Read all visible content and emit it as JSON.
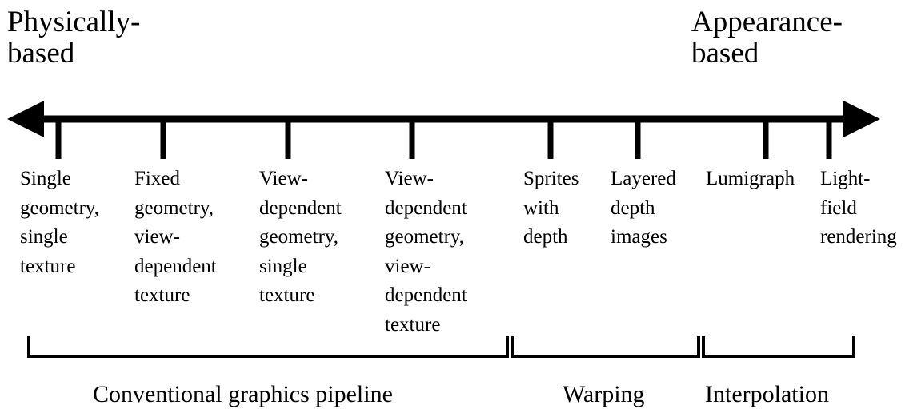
{
  "axis": {
    "left_label": [
      "Physically-",
      "based"
    ],
    "right_label": [
      "Appearance-",
      "based"
    ]
  },
  "categories": [
    {
      "id": "single-geometry-single-texture",
      "lines": [
        "Single",
        "geometry,",
        "single",
        "texture"
      ]
    },
    {
      "id": "fixed-geometry-view-dependent-texture",
      "lines": [
        "Fixed",
        "geometry,",
        "view-",
        "dependent",
        "texture"
      ]
    },
    {
      "id": "view-dependent-geometry-single-texture",
      "lines": [
        "View-",
        "dependent",
        "geometry,",
        "single",
        "texture"
      ]
    },
    {
      "id": "view-dependent-geometry-view-dependent-texture",
      "lines": [
        "View-",
        "dependent",
        "geometry,",
        "view-",
        "dependent",
        "texture"
      ]
    },
    {
      "id": "sprites-with-depth",
      "lines": [
        "Sprites",
        "with",
        "depth"
      ]
    },
    {
      "id": "layered-depth-images",
      "lines": [
        "Layered",
        "depth",
        "images"
      ]
    },
    {
      "id": "lumigraph",
      "lines": [
        "Lumigraph"
      ]
    },
    {
      "id": "light-field-rendering",
      "lines": [
        "Light-",
        "field",
        "rendering"
      ]
    }
  ],
  "groups": [
    {
      "id": "conventional",
      "label": "Conventional graphics pipeline"
    },
    {
      "id": "warping",
      "label": "Warping"
    },
    {
      "id": "interpolation",
      "label": "Interpolation"
    }
  ]
}
